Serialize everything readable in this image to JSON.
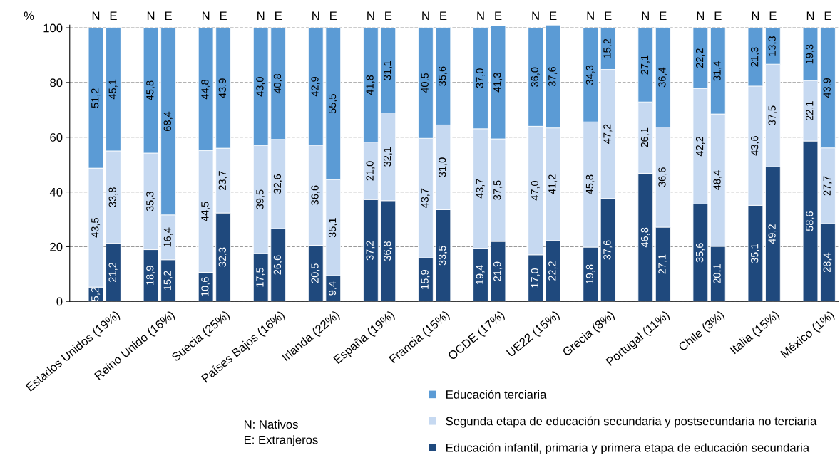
{
  "chart_data": {
    "type": "bar",
    "stacked": true,
    "ylabel": "%",
    "categories": [
      "N",
      "E",
      "N",
      "E",
      "N",
      "E",
      "N",
      "E",
      "N",
      "E",
      "N",
      "E",
      "N",
      "E",
      "N",
      "E",
      "N",
      "E",
      "N",
      "E",
      "N",
      "E",
      "N",
      "E",
      "N",
      "E",
      "N",
      "E"
    ],
    "series": [
      {
        "name": "Educación infantil, primaria y primera etapa de educación secundaria",
        "color": "#1f497d",
        "values": [
          5.2,
          21.2,
          18.9,
          15.2,
          10.6,
          32.3,
          17.5,
          26.6,
          20.5,
          9.4,
          37.2,
          36.8,
          15.9,
          33.5,
          19.4,
          21.9,
          17.0,
          22.2,
          19.8,
          37.6,
          46.8,
          27.1,
          35.6,
          20.1,
          35.1,
          49.2,
          58.6,
          28.4
        ],
        "value_labels": [
          "5,2",
          "21,2",
          "18,9",
          "15,2",
          "10,6",
          "32,3",
          "17,5",
          "26,6",
          "20,5",
          "9,4",
          "37,2",
          "36,8",
          "15,9",
          "33,5",
          "19,4",
          "21,9",
          "17,0",
          "22,2",
          "19,8",
          "37,6",
          "46,8",
          "27,1",
          "35,6",
          "20,1",
          "35,1",
          "49,2",
          "58,6",
          "28,4"
        ]
      },
      {
        "name": "Segunda etapa de educación secundaria y postsecundaria no terciaria",
        "color": "#c6d9f1",
        "values": [
          43.5,
          33.8,
          35.3,
          16.4,
          44.5,
          23.7,
          39.5,
          32.6,
          36.6,
          35.1,
          21.0,
          32.1,
          43.7,
          31.0,
          43.7,
          37.5,
          47.0,
          41.2,
          45.8,
          47.2,
          26.1,
          36.6,
          42.2,
          48.4,
          43.6,
          37.5,
          22.1,
          27.7
        ],
        "value_labels": [
          "43,5",
          "33,8",
          "35,3",
          "16,4",
          "44,5",
          "23,7",
          "39,5",
          "32,6",
          "36,6",
          "35,1",
          "21,0",
          "32,1",
          "43,7",
          "31,0",
          "43,7",
          "37,5",
          "47,0",
          "41,2",
          "45,8",
          "47,2",
          "26,1",
          "36,6",
          "42,2",
          "48,4",
          "43,6",
          "37,5",
          "22,1",
          "27,7"
        ]
      },
      {
        "name": "Educación terciaria",
        "color": "#5b9bd5",
        "values": [
          51.2,
          45.1,
          45.8,
          68.4,
          44.8,
          43.9,
          43.0,
          40.8,
          42.9,
          55.5,
          41.8,
          31.1,
          40.5,
          35.6,
          37.0,
          41.3,
          36.0,
          37.6,
          34.3,
          15.2,
          27.1,
          36.4,
          22.2,
          31.4,
          21.3,
          13.3,
          19.3,
          43.9
        ],
        "value_labels": [
          "51,2",
          "45,1",
          "45,8",
          "68,4",
          "44,8",
          "43,9",
          "43,0",
          "40,8",
          "42,9",
          "55,5",
          "41,8",
          "31,1",
          "40,5",
          "35,6",
          "37,0",
          "41,3",
          "36,0",
          "37,6",
          "34,3",
          "15,2",
          "27,1",
          "36,4",
          "22,2",
          "31,4",
          "21,3",
          "13,3",
          "19,3",
          "43,9"
        ]
      }
    ],
    "ylim": [
      0,
      101
    ],
    "yticks": [
      0,
      20,
      40,
      60,
      80,
      100
    ],
    "grid": "y",
    "legend": "bottom right",
    "annotations": [
      "Estados Unidos (19%)",
      "Reino Unido (16%)",
      "Suecia (25%)",
      "Países Bajos (16%)",
      "Irlanda (22%)",
      "España (19%)",
      "Francia (15%)",
      "OCDE (17%)",
      "UE22 (15%)",
      "Grecia (8%)",
      "Portugal (11%)",
      "Chile (3%)",
      "Italia (15%)",
      "México (1%)",
      "N: Nativos",
      "E: Extranjeros"
    ]
  }
}
